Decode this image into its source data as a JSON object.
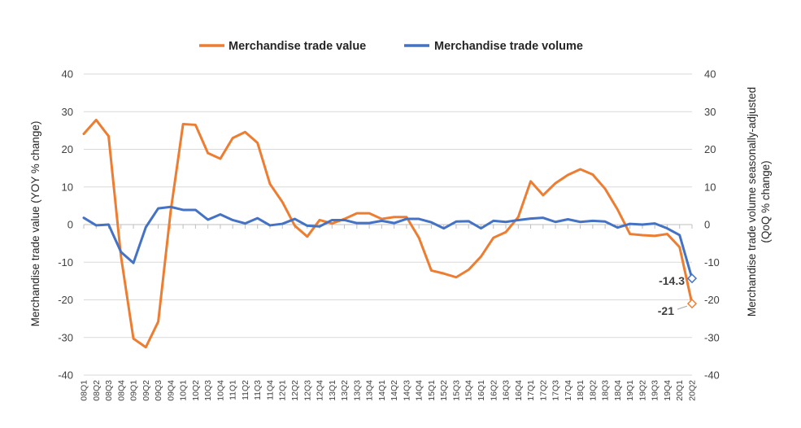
{
  "chart_data": {
    "type": "line",
    "categories": [
      "08Q1",
      "08Q2",
      "08Q3",
      "08Q4",
      "09Q1",
      "09Q2",
      "09Q3",
      "09Q4",
      "10Q1",
      "10Q2",
      "10Q3",
      "10Q4",
      "11Q1",
      "11Q2",
      "11Q3",
      "11Q4",
      "12Q1",
      "12Q2",
      "12Q3",
      "12Q4",
      "13Q1",
      "13Q2",
      "13Q3",
      "13Q4",
      "14Q1",
      "14Q2",
      "14Q3",
      "14Q4",
      "15Q1",
      "15Q2",
      "15Q3",
      "15Q4",
      "16Q1",
      "16Q2",
      "16Q3",
      "16Q4",
      "17Q1",
      "17Q2",
      "17Q3",
      "17Q4",
      "18Q1",
      "18Q2",
      "18Q3",
      "18Q4",
      "19Q1",
      "19Q2",
      "19Q3",
      "19Q4",
      "20Q1",
      "20Q2"
    ],
    "series": [
      {
        "name": "Merchandise trade value",
        "axis": "left",
        "color": "#ED7D31",
        "values": [
          24.1,
          27.8,
          23.5,
          -8.5,
          -30.3,
          -32.6,
          -25.8,
          3.5,
          26.7,
          26.5,
          19.0,
          17.5,
          23.0,
          24.6,
          21.7,
          10.8,
          6.0,
          -0.3,
          -3.2,
          1.2,
          0.3,
          1.5,
          3.0,
          3.0,
          1.5,
          2.0,
          2.0,
          -3.5,
          -12.2,
          -13.0,
          -14.0,
          -12.0,
          -8.5,
          -3.5,
          -2.0,
          2.0,
          11.5,
          7.8,
          11.0,
          13.2,
          14.7,
          13.3,
          9.5,
          4.0,
          -2.5,
          -2.8,
          -3.0,
          -2.5,
          -6.0,
          -21.0
        ]
      },
      {
        "name": "Merchandise trade volume",
        "axis": "right",
        "color": "#4472C4",
        "values": [
          1.8,
          -0.2,
          0.0,
          -7.3,
          -10.2,
          -0.7,
          4.3,
          4.7,
          3.9,
          3.9,
          1.3,
          2.7,
          1.2,
          0.3,
          1.7,
          -0.2,
          0.2,
          1.5,
          -0.3,
          -0.5,
          1.2,
          1.2,
          0.4,
          0.4,
          1.0,
          0.4,
          1.5,
          1.5,
          0.6,
          -1.0,
          0.8,
          0.9,
          -1.0,
          1.0,
          0.7,
          1.2,
          1.6,
          1.8,
          0.7,
          1.4,
          0.7,
          1.0,
          0.8,
          -0.8,
          0.2,
          0.0,
          0.3,
          -1.0,
          -2.8,
          -14.3
        ]
      }
    ],
    "ylabel": "Merchandise trade value (YOY % change)",
    "ylabel_right_line1": "Merchandise trade volume seasonally-adjusted",
    "ylabel_right_line2": "(QoQ % change)",
    "ylim": [
      -40,
      40
    ],
    "y2lim": [
      -40,
      40
    ],
    "yticks": [
      "40",
      "30",
      "20",
      "10",
      "0",
      "-10",
      "-20",
      "-30",
      "-40"
    ],
    "y2ticks": [
      "40",
      "30",
      "20",
      "10",
      "0",
      "-10",
      "-20",
      "-30",
      "-40"
    ],
    "grid": true,
    "legend": "top-center",
    "annotations": [
      {
        "series": "Merchandise trade volume",
        "label": "-14.3"
      },
      {
        "series": "Merchandise trade value",
        "label": "-21"
      }
    ]
  }
}
